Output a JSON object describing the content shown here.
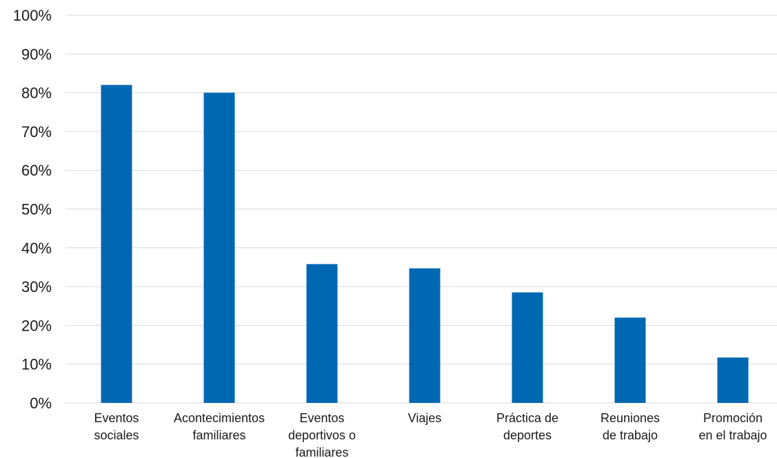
{
  "chart_data": {
    "type": "bar",
    "categories": [
      [
        "Eventos",
        "sociales"
      ],
      [
        "Acontecimientos",
        "familiares"
      ],
      [
        "Eventos",
        "deportivos o",
        "familiares"
      ],
      [
        "Viajes"
      ],
      [
        "Práctica de",
        "deportes"
      ],
      [
        "Reuniones",
        "de trabajo"
      ],
      [
        "Promoción",
        "en el trabajo"
      ]
    ],
    "values": [
      82,
      80,
      35.8,
      34.7,
      28.5,
      22,
      11.7
    ],
    "y_ticks": [
      "0%",
      "10%",
      "20%",
      "30%",
      "40%",
      "50%",
      "60%",
      "70%",
      "80%",
      "90%",
      "100%"
    ],
    "ylim": [
      0,
      100
    ],
    "title": "",
    "xlabel": "",
    "ylabel": "",
    "grid": true,
    "legend": "none",
    "bar_color": "#0068b3",
    "grid_color": "#d9d9d9"
  }
}
